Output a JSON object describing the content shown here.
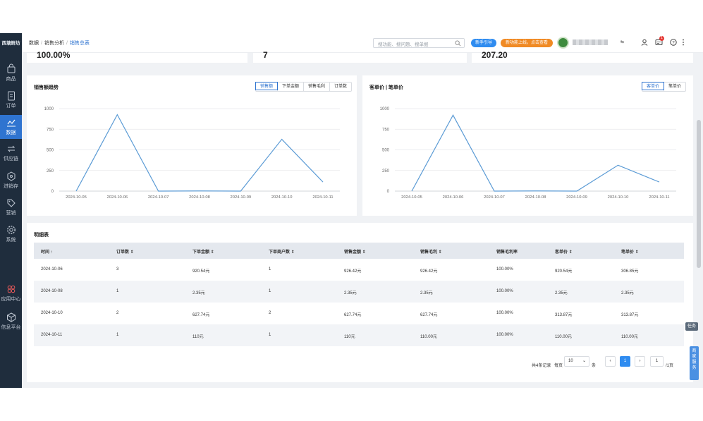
{
  "brand": "西塘鲜坊",
  "sidebar": {
    "items": [
      {
        "label": "商品",
        "icon": "shopping-bag-icon"
      },
      {
        "label": "订单",
        "icon": "order-icon"
      },
      {
        "label": "数据",
        "icon": "trend-chart-icon"
      },
      {
        "label": "供应链",
        "icon": "supply-chain-icon"
      },
      {
        "label": "进销存",
        "icon": "inventory-icon"
      },
      {
        "label": "营销",
        "icon": "tag-icon"
      },
      {
        "label": "系统",
        "icon": "gear-icon"
      },
      {
        "label": "应用中心",
        "icon": "apps-icon"
      },
      {
        "label": "信息平台",
        "icon": "cube-icon"
      }
    ],
    "active": "数据"
  },
  "header": {
    "breadcrumb": [
      "数据",
      "销售分析",
      "销售总表"
    ],
    "search_placeholder": "搜功能、搜问题、搜单据",
    "guide_button": "新手引导",
    "new_feature_button": "新功能上线，点击查看",
    "store_caret": "⇆",
    "notification_count": "1"
  },
  "stats": [
    "100.00%",
    "7",
    "207.20"
  ],
  "sales_chart": {
    "title": "销售额趋势",
    "tabs": [
      "销售额",
      "下单金额",
      "销售毛利",
      "订单数"
    ],
    "active_tab": "销售额"
  },
  "unit_chart": {
    "title": "客单价 | 笔单价",
    "tabs": [
      "客单价",
      "笔单价"
    ],
    "active_tab": "客单价"
  },
  "chart_data": [
    {
      "type": "line",
      "title": "销售额趋势",
      "categories": [
        "2024-10-05",
        "2024-10-06",
        "2024-10-07",
        "2024-10-08",
        "2024-10-09",
        "2024-10-10",
        "2024-10-11"
      ],
      "series": [
        {
          "values": [
            0,
            926.42,
            0,
            2.35,
            0,
            627.74,
            110
          ]
        }
      ],
      "yticks": [
        "0",
        "250",
        "500",
        "750",
        "1000"
      ],
      "ylim": [
        0,
        1000
      ],
      "grid": true,
      "color": "#5b9bd5"
    },
    {
      "type": "line",
      "title": "客单价 | 笔单价",
      "categories": [
        "2024-10-05",
        "2024-10-06",
        "2024-10-07",
        "2024-10-08",
        "2024-10-09",
        "2024-10-10",
        "2024-10-11"
      ],
      "series": [
        {
          "values": [
            0,
            920.54,
            0,
            2.35,
            0,
            313.87,
            110
          ]
        }
      ],
      "yticks": [
        "0",
        "250",
        "500",
        "750",
        "1000"
      ],
      "ylim": [
        0,
        1000
      ],
      "grid": true,
      "color": "#5b9bd5"
    }
  ],
  "table": {
    "title": "明细表",
    "columns": [
      "时间 ↑",
      "订单数 ⇕",
      "下单金额 ⇕",
      "下单商户数 ⇕",
      "销售金额 ⇕",
      "销售毛利 ⇕",
      "销售毛利率",
      "客单价 ⇕",
      "笔单价 ⇕"
    ],
    "rows": [
      [
        "2024-10-06",
        "3",
        "920.54元",
        "1",
        "926.42元",
        "926.42元",
        "100.00%",
        "920.54元",
        "306.85元"
      ],
      [
        "2024-10-08",
        "1",
        "2.35元",
        "1",
        "2.35元",
        "2.35元",
        "100.00%",
        "2.35元",
        "2.35元"
      ],
      [
        "2024-10-10",
        "2",
        "627.74元",
        "2",
        "627.74元",
        "627.74元",
        "100.00%",
        "313.87元",
        "313.87元"
      ],
      [
        "2024-10-11",
        "1",
        "110元",
        "1",
        "110元",
        "110.00元",
        "100.00%",
        "110.00元",
        "110.00元"
      ]
    ]
  },
  "pager": {
    "total_text": "共4条记录",
    "per_page_label": "每页",
    "per_page_value": "10",
    "unit": "条",
    "prev": "‹",
    "current": "1",
    "next": "›",
    "jump_value": "1",
    "total_pages": "/1页"
  },
  "floating": {
    "task": "任务",
    "service": "商家服务"
  }
}
